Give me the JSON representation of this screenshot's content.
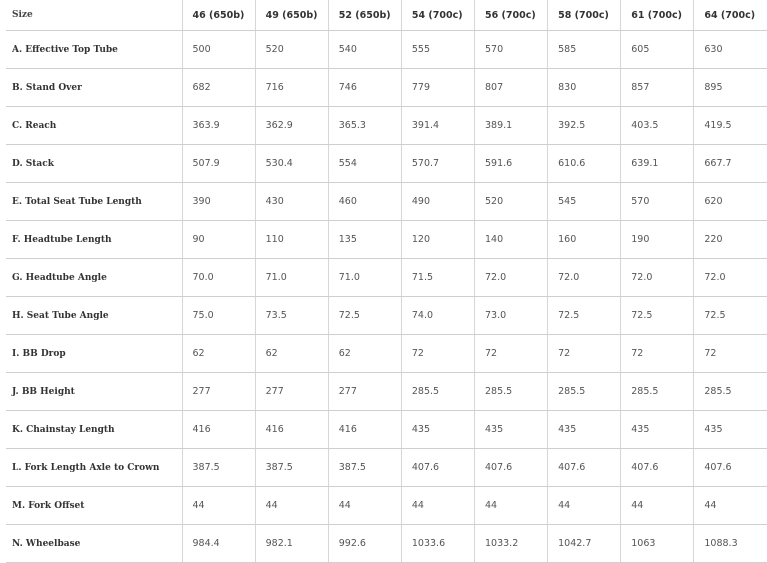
{
  "table": {
    "headers": [
      "Size",
      "46 (650b)",
      "49 (650b)",
      "52 (650b)",
      "54 (700c)",
      "56 (700c)",
      "58 (700c)",
      "61 (700c)",
      "64 (700c)"
    ],
    "rows": [
      {
        "label": "A. Effective Top Tube",
        "values": [
          "500",
          "520",
          "540",
          "555",
          "570",
          "585",
          "605",
          "630"
        ]
      },
      {
        "label": "B. Stand Over",
        "values": [
          "682",
          "716",
          "746",
          "779",
          "807",
          "830",
          "857",
          "895"
        ]
      },
      {
        "label": "C. Reach",
        "values": [
          "363.9",
          "362.9",
          "365.3",
          "391.4",
          "389.1",
          "392.5",
          "403.5",
          "419.5"
        ]
      },
      {
        "label": "D. Stack",
        "values": [
          "507.9",
          "530.4",
          "554",
          "570.7",
          "591.6",
          "610.6",
          "639.1",
          "667.7"
        ]
      },
      {
        "label": "E. Total Seat Tube Length",
        "values": [
          "390",
          "430",
          "460",
          "490",
          "520",
          "545",
          "570",
          "620"
        ]
      },
      {
        "label": "F. Headtube Length",
        "values": [
          "90",
          "110",
          "135",
          "120",
          "140",
          "160",
          "190",
          "220"
        ]
      },
      {
        "label": "G. Headtube Angle",
        "values": [
          "70.0",
          "71.0",
          "71.0",
          "71.5",
          "72.0",
          "72.0",
          "72.0",
          "72.0"
        ]
      },
      {
        "label": "H. Seat Tube Angle",
        "values": [
          "75.0",
          "73.5",
          "72.5",
          "74.0",
          "73.0",
          "72.5",
          "72.5",
          "72.5"
        ]
      },
      {
        "label": "I. BB Drop",
        "values": [
          "62",
          "62",
          "62",
          "72",
          "72",
          "72",
          "72",
          "72"
        ]
      },
      {
        "label": "J. BB Height",
        "values": [
          "277",
          "277",
          "277",
          "285.5",
          "285.5",
          "285.5",
          "285.5",
          "285.5"
        ]
      },
      {
        "label": "K. Chainstay Length",
        "values": [
          "416",
          "416",
          "416",
          "435",
          "435",
          "435",
          "435",
          "435"
        ]
      },
      {
        "label": "L. Fork Length Axle to Crown",
        "values": [
          "387.5",
          "387.5",
          "387.5",
          "407.6",
          "407.6",
          "407.6",
          "407.6",
          "407.6"
        ]
      },
      {
        "label": "M. Fork Offset",
        "values": [
          "44",
          "44",
          "44",
          "44",
          "44",
          "44",
          "44",
          "44"
        ]
      },
      {
        "label": "N. Wheelbase",
        "values": [
          "984.4",
          "982.1",
          "992.6",
          "1033.6",
          "1033.2",
          "1042.7",
          "1063",
          "1088.3"
        ]
      }
    ]
  }
}
